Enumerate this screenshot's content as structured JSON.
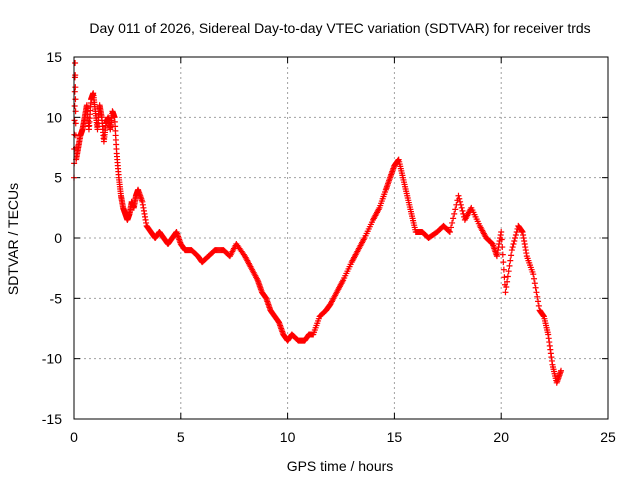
{
  "chart_data": {
    "type": "scatter",
    "title": "Day 011 of 2026, Sidereal Day-to-day VTEC variation (SDTVAR) for receiver trds",
    "xlabel": "GPS time / hours",
    "ylabel": "SDTVAR / TECUs",
    "xlim": [
      0,
      25
    ],
    "ylim": [
      -15,
      15
    ],
    "xticks": [
      0,
      5,
      10,
      15,
      20,
      25
    ],
    "yticks": [
      -15,
      -10,
      -5,
      0,
      5,
      10,
      15
    ],
    "grid": true,
    "marker": "+",
    "color": "#ff0000",
    "series": [
      {
        "name": "SDTVAR",
        "x": [
          0.0,
          0.05,
          0.1,
          0.2,
          0.3,
          0.4,
          0.5,
          0.6,
          0.7,
          0.8,
          0.9,
          1.0,
          1.1,
          1.2,
          1.3,
          1.4,
          1.5,
          1.6,
          1.7,
          1.8,
          1.9,
          2.0,
          2.1,
          2.2,
          2.3,
          2.4,
          2.5,
          2.6,
          2.7,
          2.8,
          2.9,
          3.0,
          3.2,
          3.4,
          3.6,
          3.8,
          4.0,
          4.2,
          4.4,
          4.6,
          4.8,
          5.0,
          5.2,
          5.5,
          5.8,
          6.0,
          6.3,
          6.6,
          7.0,
          7.3,
          7.6,
          8.0,
          8.3,
          8.6,
          8.8,
          9.0,
          9.2,
          9.4,
          9.6,
          9.8,
          10.0,
          10.2,
          10.5,
          10.8,
          11.0,
          11.2,
          11.5,
          11.8,
          12.0,
          12.3,
          12.6,
          13.0,
          13.3,
          13.6,
          14.0,
          14.3,
          14.6,
          14.8,
          15.0,
          15.2,
          15.4,
          15.6,
          15.8,
          16.0,
          16.3,
          16.6,
          17.0,
          17.3,
          17.6,
          18.0,
          18.3,
          18.6,
          19.0,
          19.3,
          19.6,
          19.8,
          20.0,
          20.2,
          20.5,
          20.8,
          21.0,
          21.2,
          21.5,
          21.8,
          22.0,
          22.2,
          22.4,
          22.6,
          22.8
        ],
        "y": [
          5.0,
          14.5,
          6.5,
          7.5,
          8.5,
          9.0,
          10.0,
          11.0,
          9.0,
          11.5,
          12.0,
          10.5,
          9.0,
          11.0,
          10.0,
          8.0,
          9.5,
          10.0,
          9.0,
          10.5,
          10.0,
          7.0,
          5.0,
          3.5,
          2.5,
          2.0,
          1.5,
          2.0,
          3.0,
          2.5,
          3.5,
          4.0,
          3.0,
          1.0,
          0.5,
          0.0,
          0.5,
          0.0,
          -0.5,
          0.0,
          0.5,
          -0.5,
          -1.0,
          -1.0,
          -1.5,
          -2.0,
          -1.5,
          -1.0,
          -1.0,
          -1.5,
          -0.5,
          -1.5,
          -2.5,
          -3.5,
          -4.5,
          -5.0,
          -6.0,
          -6.5,
          -7.0,
          -8.0,
          -8.5,
          -8.0,
          -8.5,
          -8.5,
          -8.0,
          -8.0,
          -6.5,
          -6.0,
          -5.5,
          -4.5,
          -3.5,
          -2.0,
          -1.0,
          0.0,
          1.5,
          2.5,
          4.0,
          5.0,
          6.0,
          6.5,
          5.0,
          3.5,
          2.0,
          0.5,
          0.5,
          0.0,
          0.5,
          1.0,
          0.5,
          3.5,
          1.5,
          2.5,
          1.0,
          0.0,
          -0.5,
          -1.5,
          0.5,
          -4.5,
          -1.0,
          1.0,
          0.5,
          -1.5,
          -3.0,
          -6.0,
          -6.5,
          -8.0,
          -10.5,
          -12.0,
          -11.0
        ]
      }
    ]
  }
}
